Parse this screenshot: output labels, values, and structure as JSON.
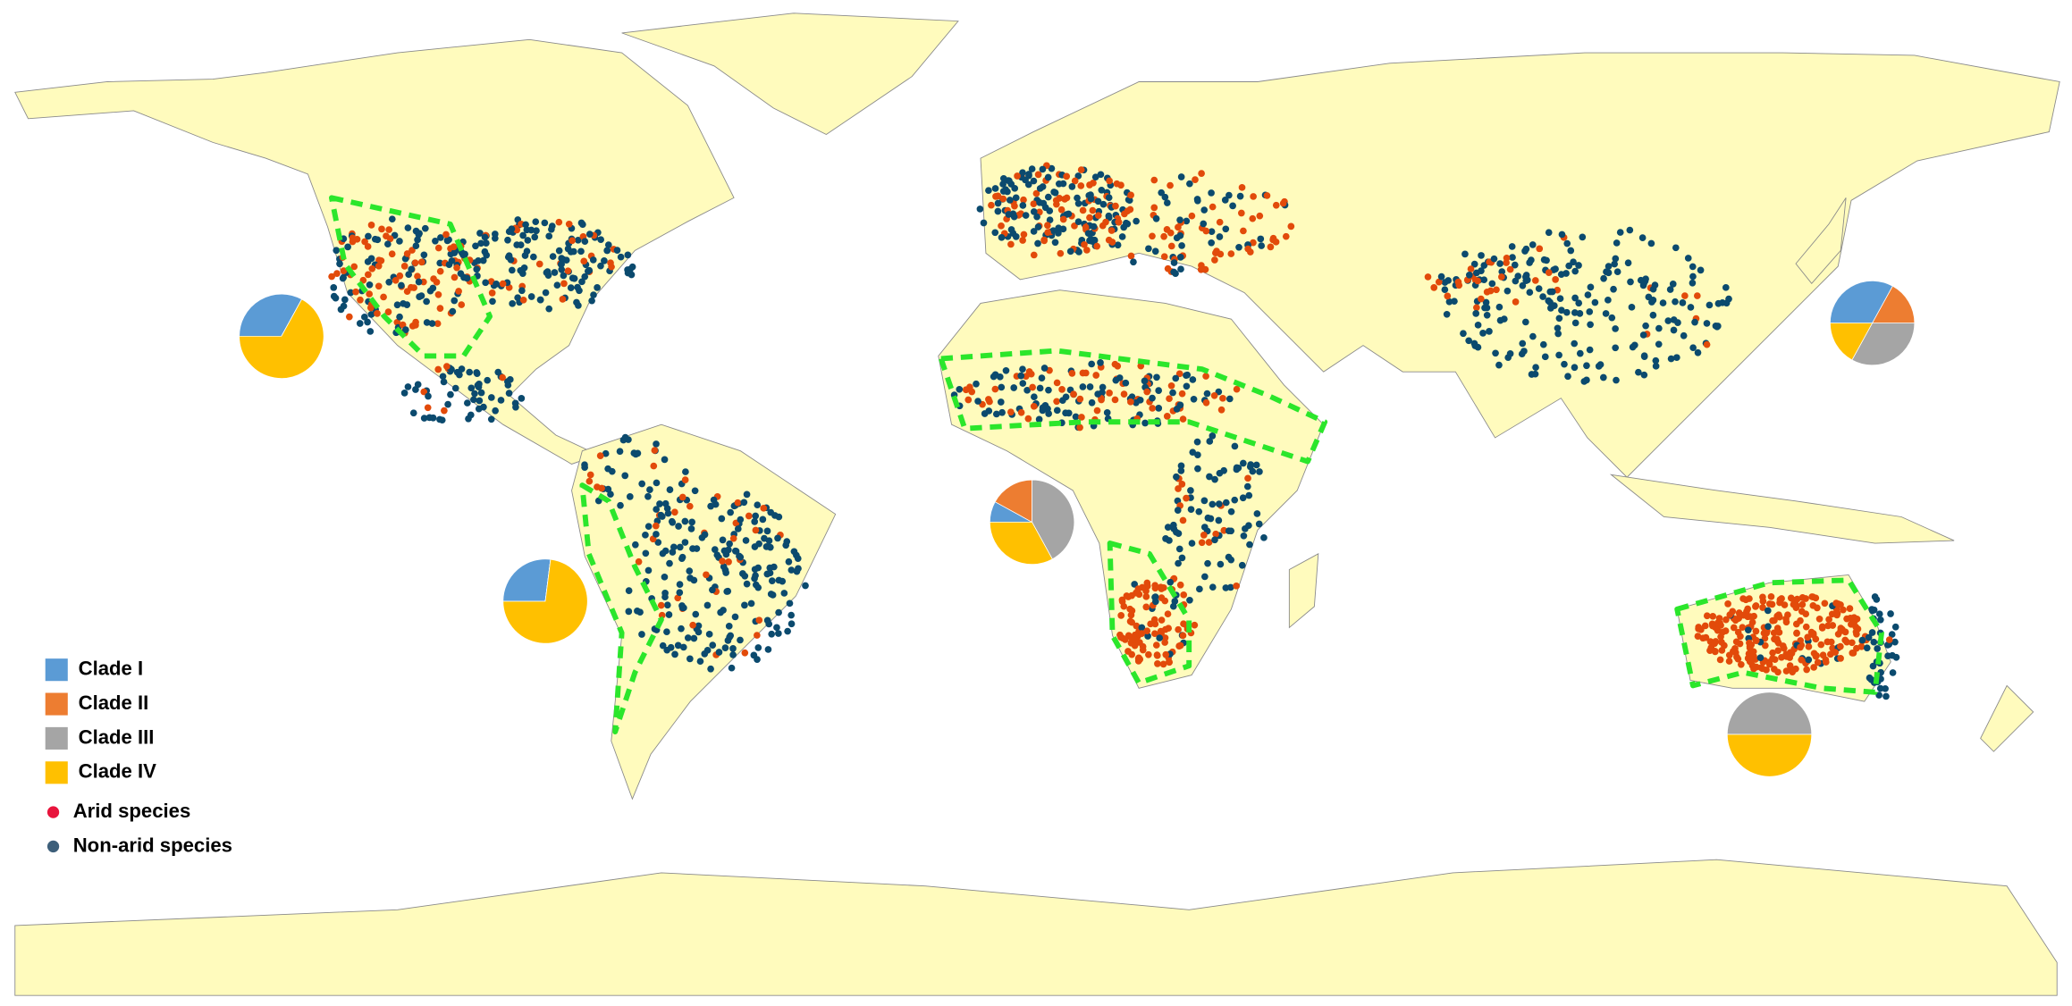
{
  "legend": {
    "clades": [
      {
        "label": "Clade I",
        "color": "#5b9bd5"
      },
      {
        "label": "Clade II",
        "color": "#ed7d31"
      },
      {
        "label": "Clade III",
        "color": "#a5a5a5"
      },
      {
        "label": "Clade IV",
        "color": "#ffc000"
      }
    ],
    "points": [
      {
        "label": "Arid species",
        "color": "#e8143c"
      },
      {
        "label": "Non-arid species",
        "color": "#3d5f7a"
      }
    ]
  },
  "pies": [
    {
      "values": [
        33,
        0,
        0,
        67
      ]
    },
    {
      "values": [
        27,
        0,
        0,
        73
      ]
    },
    {
      "values": [
        8,
        17,
        42,
        33
      ]
    },
    {
      "values": [
        33,
        17,
        33,
        17
      ]
    },
    {
      "values": [
        0,
        0,
        50,
        50
      ]
    }
  ]
}
